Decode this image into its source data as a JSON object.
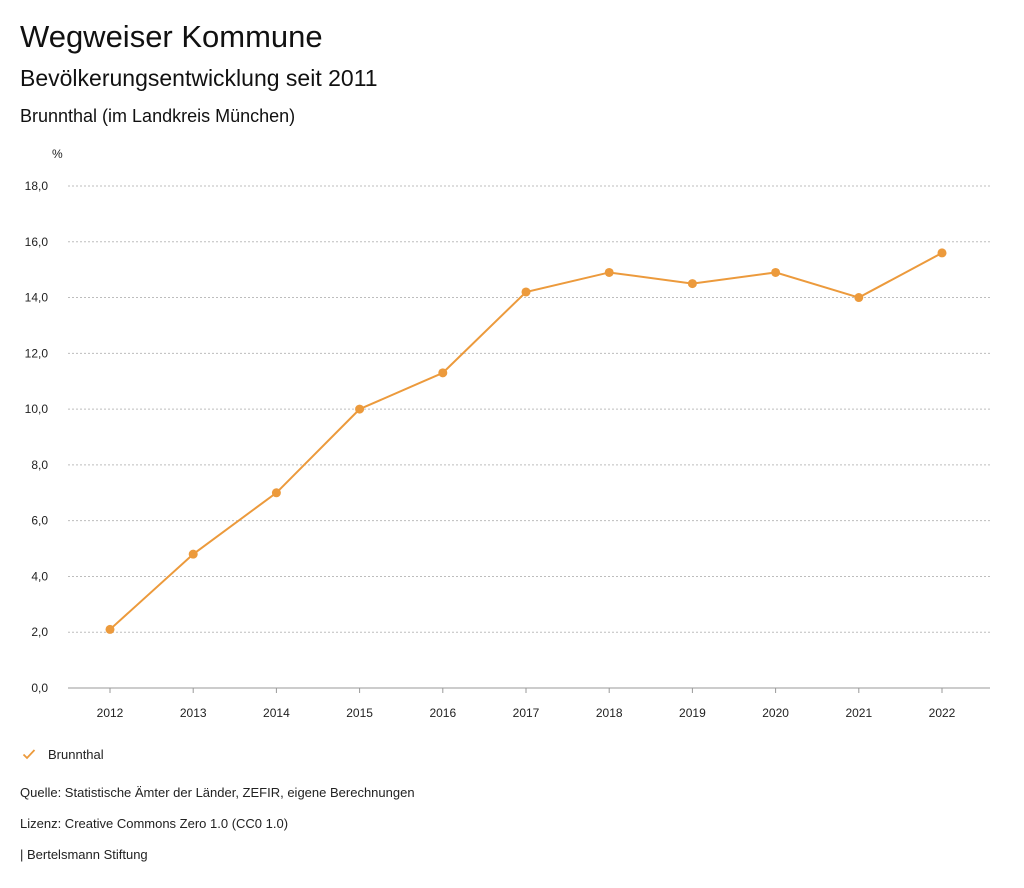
{
  "header": {
    "title": "Wegweiser Kommune",
    "subtitle": "Bevölkerungsentwicklung seit 2011",
    "region": "Brunnthal (im Landkreis München)"
  },
  "chart_data": {
    "type": "line",
    "ylabel": "%",
    "x": [
      "2012",
      "2013",
      "2014",
      "2015",
      "2016",
      "2017",
      "2018",
      "2019",
      "2020",
      "2021",
      "2022"
    ],
    "series": [
      {
        "name": "Brunnthal",
        "values": [
          2.1,
          4.8,
          7.0,
          10.0,
          11.3,
          14.2,
          14.9,
          14.5,
          14.9,
          14.0,
          15.6
        ]
      }
    ],
    "ylim": [
      0,
      18
    ],
    "yticks": [
      "0,0",
      "2,0",
      "4,0",
      "6,0",
      "8,0",
      "10,0",
      "12,0",
      "14,0",
      "16,0",
      "18,0"
    ],
    "grid": true,
    "legend_position": "bottom-left",
    "color": "#ec9a3c"
  },
  "legend": {
    "icon": "check-icon",
    "label": "Brunnthal"
  },
  "footer": {
    "source": "Quelle: Statistische Ämter der Länder, ZEFIR, eigene Berechnungen",
    "license": "Lizenz: Creative Commons Zero 1.0 (CC0 1.0)",
    "publisher": "| Bertelsmann Stiftung"
  }
}
